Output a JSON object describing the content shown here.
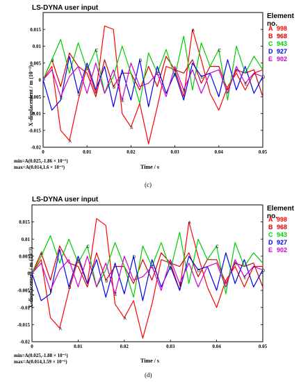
{
  "panels": [
    {
      "title": "LS-DYNA user input",
      "legend_title": "Element no.",
      "caption": "(c)",
      "xlabel": "Time / s",
      "ylabel": "X-displacement / m (10⁻³)",
      "min_text": "min=A(0.025,-1.86 × 10⁻⁵)",
      "max_text": "max=A(0.014,1.6 × 10⁻⁵)"
    },
    {
      "title": "LS-DYNA user input",
      "legend_title": "Element no.",
      "caption": "(d)",
      "xlabel": "Time / s",
      "ylabel": "X-displacement / m (10⁻³)",
      "min_text": "min=A(0.025,-1.88 × 10⁻⁵)",
      "max_text": "max=A(0.014,1.59 × 10⁻⁵)"
    }
  ],
  "legend": [
    {
      "code": "A",
      "element": "998",
      "color": "#ff0000"
    },
    {
      "code": "B",
      "element": "968",
      "color": "#d80000"
    },
    {
      "code": "C",
      "element": "943",
      "color": "#00cc00"
    },
    {
      "code": "D",
      "element": "927",
      "color": "#0000ee"
    },
    {
      "code": "E",
      "element": "902",
      "color": "#cc00cc"
    }
  ],
  "chart_data": [
    {
      "type": "line",
      "xlim": [
        0,
        0.05
      ],
      "xticks": [
        "0",
        "0.01",
        "0.02",
        "0.03",
        "0.04",
        "0.05"
      ],
      "ylim": [
        -0.02,
        0.02
      ],
      "yticks": [
        "0.015",
        "0.01",
        "0.005",
        "0",
        "-0.005",
        "-0.01",
        "-0.015",
        "-0.02"
      ],
      "x": [
        0,
        0.002,
        0.004,
        0.006,
        0.008,
        0.01,
        0.012,
        0.014,
        0.016,
        0.018,
        0.02,
        0.022,
        0.024,
        0.026,
        0.028,
        0.03,
        0.032,
        0.034,
        0.036,
        0.038,
        0.04,
        0.042,
        0.044,
        0.046,
        0.048,
        0.05
      ],
      "series": [
        {
          "code": "A",
          "color": "#ff0000",
          "values": [
            0,
            0.004,
            -0.015,
            -0.018,
            -0.006,
            0.004,
            -0.004,
            0.016,
            0.015,
            -0.01,
            -0.014,
            -0.007,
            -0.019,
            -0.008,
            0.004,
            0.003,
            -0.005,
            0.015,
            0.006,
            -0.004,
            -0.009,
            -0.002,
            0.002,
            -0.003,
            0.002,
            0.003
          ]
        },
        {
          "code": "B",
          "color": "#d80000",
          "values": [
            0,
            0.006,
            -0.002,
            0.008,
            0.004,
            0.002,
            -0.005,
            0.006,
            -0.002,
            0.002,
            0.002,
            -0.003,
            0.004,
            -0.002,
            0.007,
            0.003,
            0.002,
            0.006,
            -0.001,
            0.004,
            0.004,
            -0.003,
            0.003,
            0.002,
            0.003,
            -0.005
          ]
        },
        {
          "code": "C",
          "color": "#00cc00",
          "values": [
            0,
            0.006,
            0.012,
            0.002,
            0.011,
            0.003,
            0.009,
            -0.004,
            0.001,
            0.01,
            0.002,
            -0.007,
            0.008,
            0.002,
            0.009,
            0.001,
            0.013,
            -0.003,
            0.011,
            0.004,
            0.009,
            -0.006,
            0.01,
            0.002,
            0.007,
            0.003
          ]
        },
        {
          "code": "D",
          "color": "#0000ee",
          "values": [
            0,
            -0.009,
            -0.006,
            0.007,
            -0.004,
            0.005,
            -0.003,
            0.004,
            -0.008,
            0.003,
            -0.006,
            0.006,
            -0.008,
            0.004,
            -0.004,
            0.002,
            -0.006,
            0.005,
            0.001,
            0.002,
            -0.005,
            0.006,
            -0.003,
            0.004,
            -0.004,
            0.001
          ]
        },
        {
          "code": "E",
          "color": "#cc00cc",
          "values": [
            0,
            0.003,
            -0.005,
            0.001,
            0.004,
            -0.004,
            0.005,
            -0.004,
            0.003,
            -0.006,
            0.005,
            -0.002,
            -0.001,
            0.002,
            -0.005,
            0.004,
            -0.003,
            0.003,
            -0.004,
            0.002,
            0.003,
            -0.004,
            0.004,
            -0.001,
            0.002,
            0.001
          ]
        }
      ]
    },
    {
      "type": "line",
      "xlim": [
        0,
        0.05
      ],
      "xticks": [
        "0",
        "0.01",
        "0.02",
        "0.03",
        "0.04",
        "0.05"
      ],
      "ylim": [
        -0.02,
        0.02
      ],
      "yticks": [
        "0.015",
        "0.01",
        "0.005",
        "0",
        "-0.005",
        "-0.01",
        "-0.015",
        "-0.02"
      ],
      "x": [
        0,
        0.002,
        0.004,
        0.006,
        0.008,
        0.01,
        0.012,
        0.014,
        0.016,
        0.018,
        0.02,
        0.022,
        0.024,
        0.026,
        0.028,
        0.03,
        0.032,
        0.034,
        0.036,
        0.038,
        0.04,
        0.042,
        0.044,
        0.046,
        0.048,
        0.05
      ],
      "series": [
        {
          "code": "A",
          "color": "#ff0000",
          "values": [
            0,
            0.004,
            -0.013,
            -0.016,
            -0.005,
            0.004,
            -0.003,
            0.016,
            0.014,
            -0.009,
            -0.013,
            -0.008,
            -0.019,
            -0.009,
            0.004,
            0.003,
            -0.005,
            0.015,
            0.005,
            -0.004,
            -0.01,
            -0.002,
            0.002,
            -0.004,
            0.002,
            0.002
          ]
        },
        {
          "code": "B",
          "color": "#d80000",
          "values": [
            0,
            0.006,
            -0.002,
            0.008,
            0.003,
            0.002,
            -0.004,
            0.006,
            -0.002,
            0.002,
            0.002,
            -0.003,
            0.004,
            -0.002,
            0.006,
            0.003,
            0.002,
            0.006,
            -0.001,
            0.004,
            0.004,
            -0.003,
            0.003,
            0.002,
            0.003,
            -0.004
          ]
        },
        {
          "code": "C",
          "color": "#00cc00",
          "values": [
            0,
            0.005,
            0.011,
            0.003,
            0.01,
            0.003,
            0.008,
            -0.004,
            0.001,
            0.009,
            0.002,
            -0.007,
            0.008,
            0.002,
            0.009,
            0.001,
            0.012,
            -0.003,
            0.01,
            0.004,
            0.008,
            -0.006,
            0.009,
            0.002,
            0.006,
            0.003
          ]
        },
        {
          "code": "D",
          "color": "#0000ee",
          "values": [
            0,
            -0.008,
            -0.006,
            0.007,
            -0.004,
            0.005,
            -0.003,
            0.004,
            -0.007,
            0.003,
            -0.006,
            0.005,
            -0.008,
            0.004,
            -0.004,
            0.002,
            -0.005,
            0.005,
            0.001,
            0.002,
            -0.005,
            0.006,
            -0.003,
            0.004,
            -0.004,
            0.001
          ]
        },
        {
          "code": "E",
          "color": "#cc00cc",
          "values": [
            0,
            0.003,
            -0.005,
            0.001,
            0.004,
            -0.004,
            0.005,
            -0.004,
            0.003,
            -0.006,
            0.005,
            -0.002,
            -0.001,
            0.002,
            -0.005,
            0.004,
            -0.003,
            0.003,
            -0.004,
            0.002,
            0.003,
            -0.004,
            0.004,
            -0.001,
            0.002,
            0.001
          ]
        }
      ]
    }
  ]
}
